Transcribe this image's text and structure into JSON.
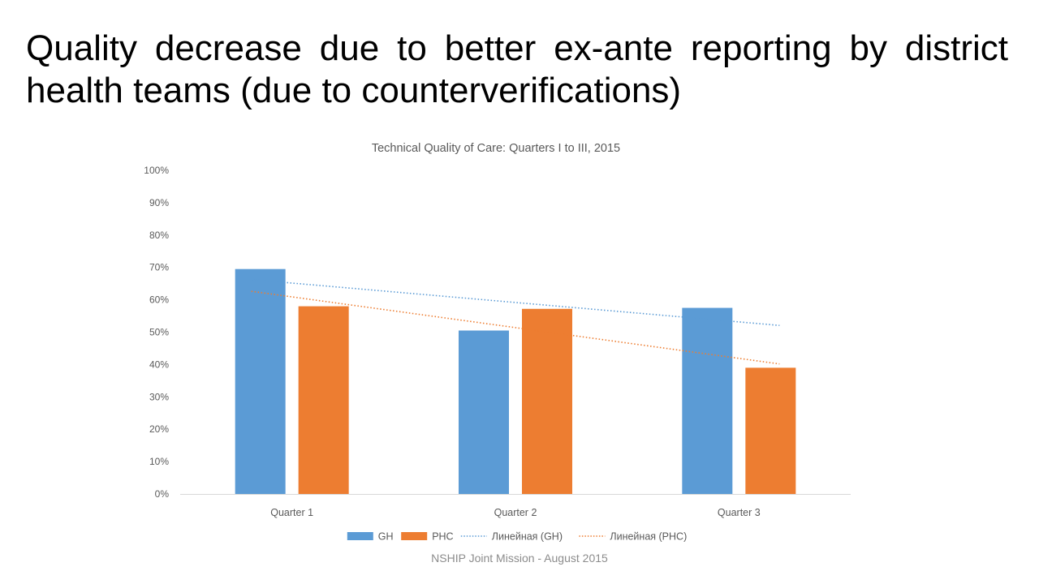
{
  "slide": {
    "title": "Quality decrease due to better ex-ante reporting by district health teams (due to counterverifications)",
    "footer": "NSHIP Joint Mission - August 2015"
  },
  "chart_data": {
    "type": "bar",
    "title": "Technical Quality of Care: Quarters I to III, 2015",
    "xlabel": "",
    "ylabel": "",
    "categories": [
      "Quarter 1",
      "Quarter 2",
      "Quarter 3"
    ],
    "series": [
      {
        "name": "GH",
        "values": [
          0.695,
          0.505,
          0.575
        ],
        "color": "#5B9BD5"
      },
      {
        "name": "PHC",
        "values": [
          0.58,
          0.572,
          0.39
        ],
        "color": "#ED7D31"
      }
    ],
    "trendlines": [
      {
        "name": "Линейная (GH)",
        "of": "GH",
        "type": "linear",
        "style": "dotted",
        "color": "#5B9BD5"
      },
      {
        "name": "Линейная (PHC)",
        "of": "PHC",
        "type": "linear",
        "style": "dotted",
        "color": "#ED7D31"
      }
    ],
    "ylim": [
      0,
      1
    ],
    "yticks": [
      "0%",
      "10%",
      "20%",
      "30%",
      "40%",
      "50%",
      "60%",
      "70%",
      "80%",
      "90%",
      "100%"
    ],
    "grid": false,
    "legend": "bottom"
  }
}
